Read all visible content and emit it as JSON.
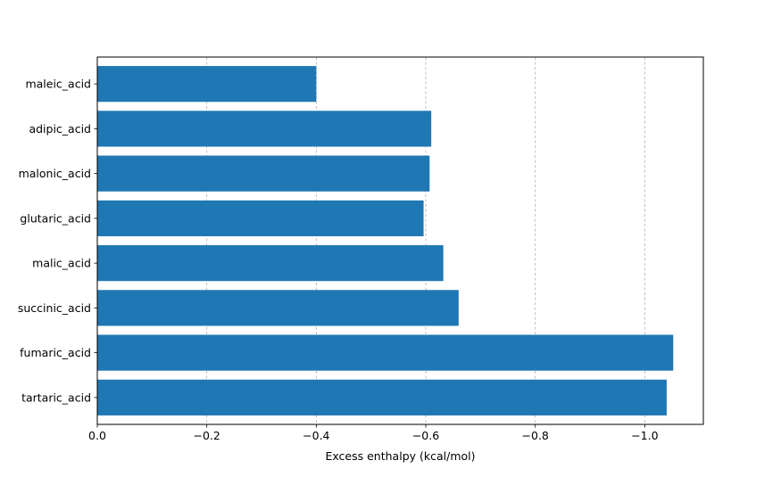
{
  "chart_data": {
    "type": "bar",
    "orientation": "horizontal",
    "title": "",
    "xlabel": "Excess enthalpy (kcal/mol)",
    "ylabel": "",
    "categories": [
      "maleic_acid",
      "adipic_acid",
      "malonic_acid",
      "glutaric_acid",
      "malic_acid",
      "succinic_acid",
      "fumaric_acid",
      "tartaric_acid"
    ],
    "values": [
      -0.4,
      -0.61,
      -0.607,
      -0.596,
      -0.632,
      -0.66,
      -1.052,
      -1.04
    ],
    "xlim": [
      0.0,
      -1.107
    ],
    "x_axis_inverted": true,
    "x_ticks": [
      0.0,
      -0.2,
      -0.4,
      -0.6,
      -0.8,
      -1.0
    ],
    "x_tick_labels": [
      "0.0",
      "−0.2",
      "−0.4",
      "−0.6",
      "−0.8",
      "−1.0"
    ],
    "grid": {
      "x": true,
      "y": false,
      "style": "dashed"
    },
    "bar_color": "#1f77b4",
    "grid_color": "#b0b0b0"
  }
}
